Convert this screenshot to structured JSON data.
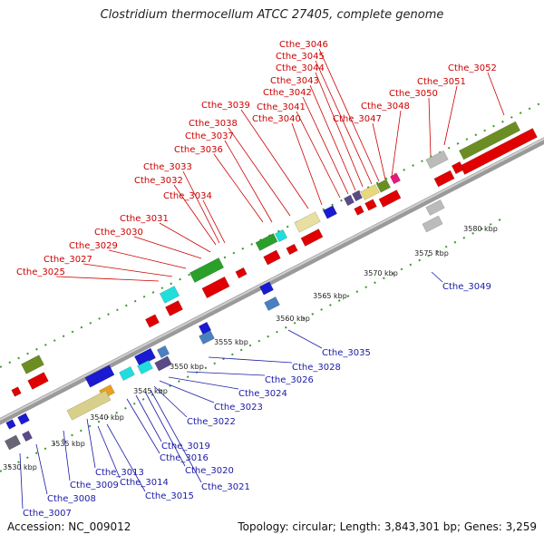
{
  "title": "Clostridium thermocellum ATCC 27405, complete genome",
  "footer": {
    "accession": "Accession: NC_009012",
    "summary": "Topology: circular; Length: 3,843,301 bp; Genes: 3,259"
  },
  "colors": {
    "forward_label": "#cc0000",
    "reverse_label": "#1a1aa6",
    "backbone": "#9a9a9a"
  },
  "kbp_ticks": [
    "3530 kbp",
    "3535 kbp",
    "3540 kbp",
    "3545 kbp",
    "3550 kbp",
    "3555 kbp",
    "3560 kbp",
    "3565 kbp",
    "3570 kbp",
    "3575 kbp",
    "3580 kbp"
  ],
  "forward_labels": [
    "Cthe_3025",
    "Cthe_3027",
    "Cthe_3029",
    "Cthe_3030",
    "Cthe_3031",
    "Cthe_3034",
    "Cthe_3032",
    "Cthe_3033",
    "Cthe_3036",
    "Cthe_3037",
    "Cthe_3038",
    "Cthe_3039",
    "Cthe_3040",
    "Cthe_3041",
    "Cthe_3042",
    "Cthe_3043",
    "Cthe_3044",
    "Cthe_3045",
    "Cthe_3046",
    "Cthe_3047",
    "Cthe_3048",
    "Cthe_3050",
    "Cthe_3051",
    "Cthe_3052"
  ],
  "reverse_labels": [
    "Cthe_3007",
    "Cthe_3008",
    "Cthe_3009",
    "Cthe_3013",
    "Cthe_3014",
    "Cthe_3015",
    "Cthe_3016",
    "Cthe_3019",
    "Cthe_3020",
    "Cthe_3021",
    "Cthe_3022",
    "Cthe_3023",
    "Cthe_3024",
    "Cthe_3026",
    "Cthe_3028",
    "Cthe_3035",
    "Cthe_3049"
  ]
}
